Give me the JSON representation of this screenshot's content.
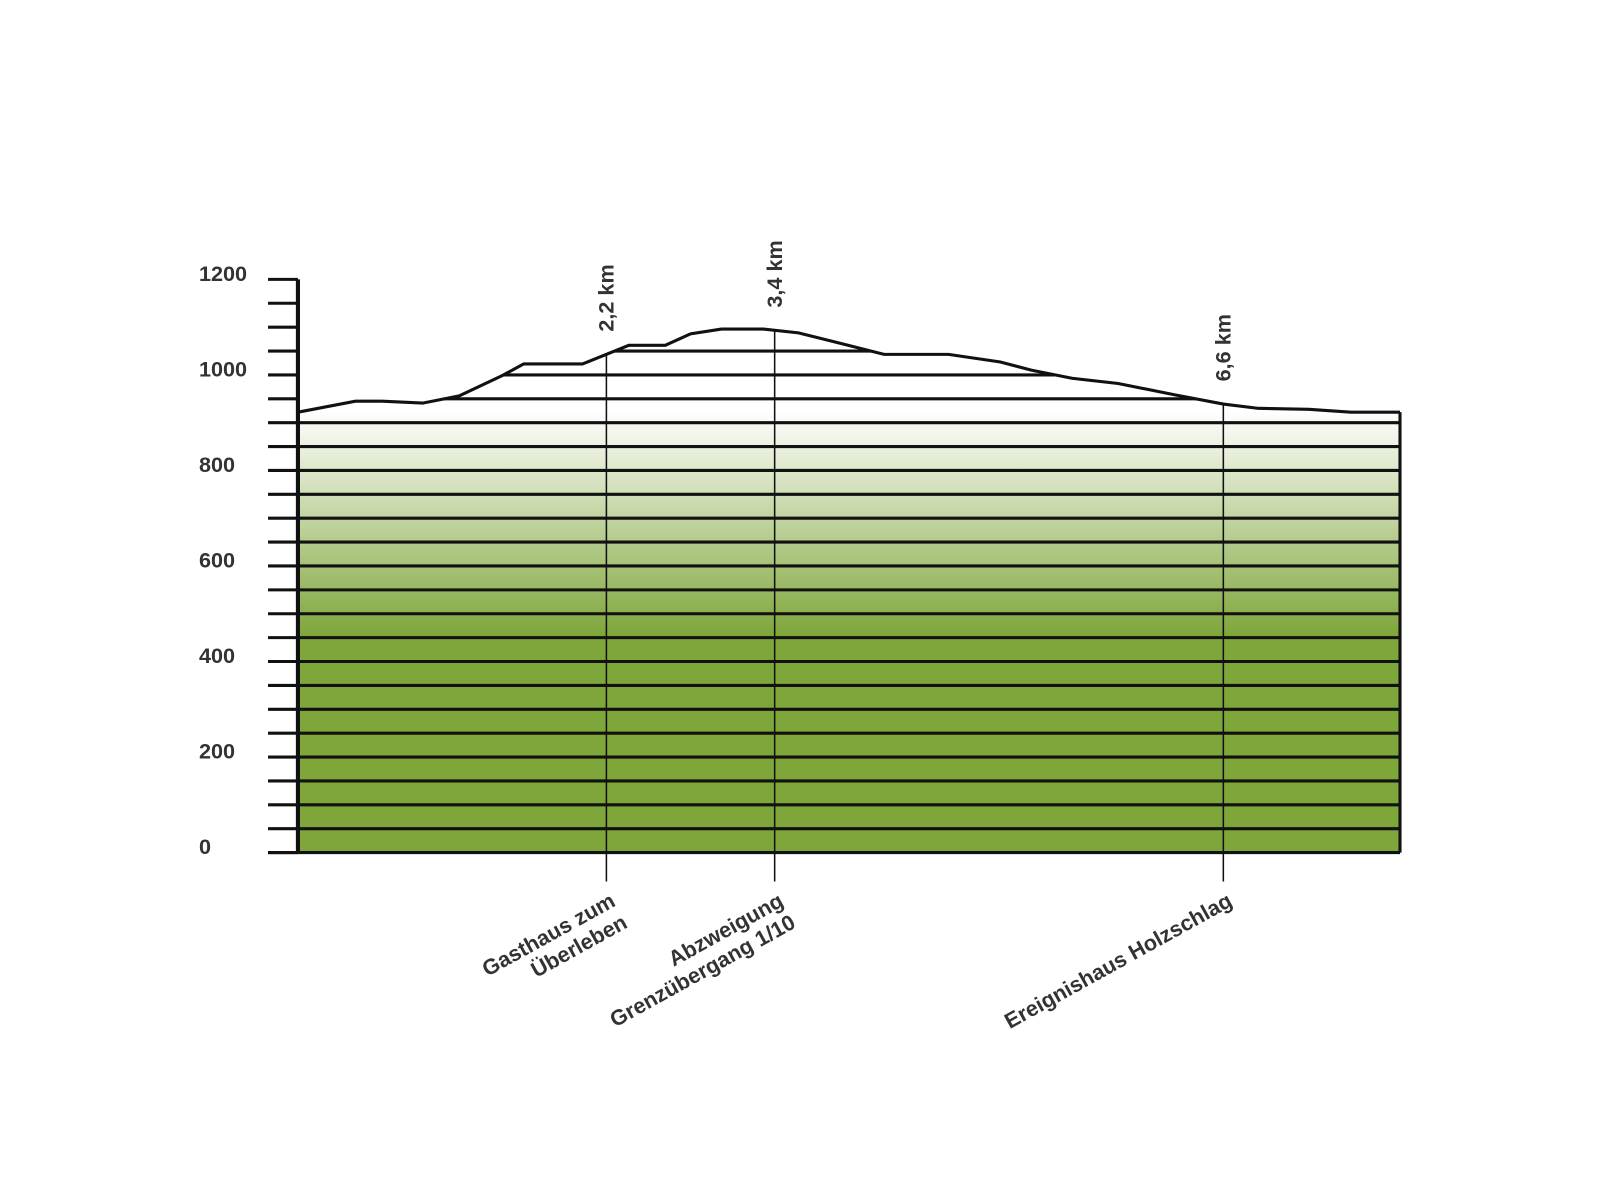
{
  "chart_data": {
    "type": "area",
    "x": [
      0,
      0.41,
      0.6,
      0.89,
      1.15,
      1.46,
      1.61,
      2.03,
      2.36,
      2.62,
      2.8,
      3.02,
      3.32,
      3.57,
      3.87,
      4.18,
      4.64,
      5.01,
      5.23,
      5.52,
      5.85,
      6.26,
      6.6,
      6.85,
      7.21,
      7.51,
      7.86
    ],
    "values": [
      922,
      945,
      945,
      941,
      956,
      999,
      1023,
      1023,
      1062,
      1062,
      1086,
      1096,
      1096,
      1088,
      1066,
      1043,
      1043,
      1027,
      1010,
      993,
      982,
      958,
      939,
      930,
      928,
      922,
      922
    ],
    "color": "#7fa63b",
    "xlim": [
      0,
      7.86
    ],
    "ylim": [
      0,
      1200
    ],
    "yticks": [
      0,
      200,
      400,
      600,
      800,
      1000,
      1200
    ],
    "yminorticks": [
      0,
      50,
      100,
      150,
      200,
      250,
      300,
      350,
      400,
      450,
      500,
      550,
      600,
      650,
      700,
      750,
      800,
      850,
      900,
      950,
      1000,
      1050,
      1100,
      1150,
      1200
    ],
    "markers": [
      {
        "x": 2.2,
        "label": "2,2 km",
        "place": [
          "Gasthaus zum",
          "Überleben"
        ]
      },
      {
        "x": 3.4,
        "label": "3,4 km",
        "place": [
          "Abzweigung",
          "Grenzübergang 1/10"
        ]
      },
      {
        "x": 6.6,
        "label": "6,6 km",
        "place": [
          "Ereignishaus Holzschlag"
        ]
      }
    ]
  }
}
